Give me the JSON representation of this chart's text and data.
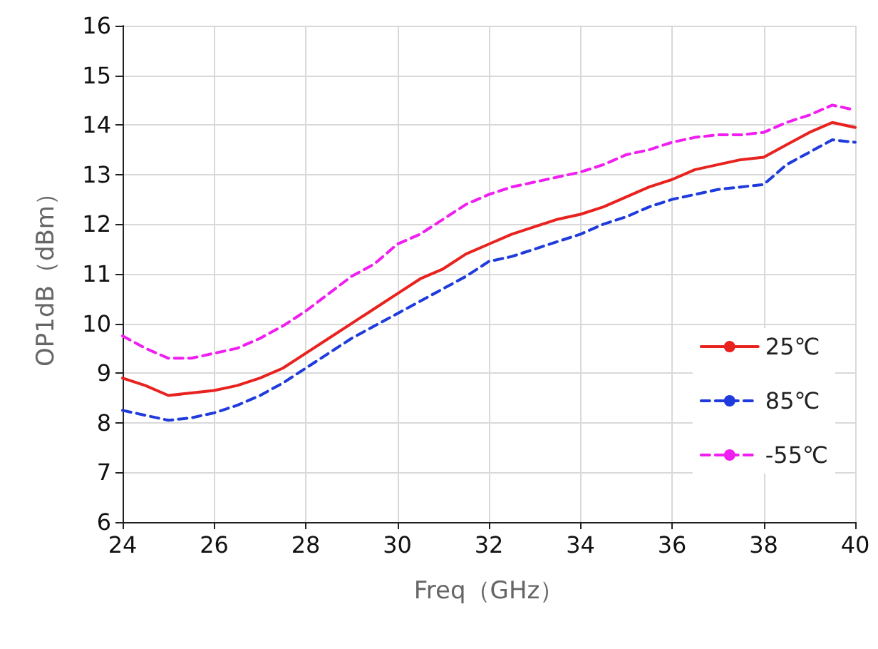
{
  "chart_data": {
    "type": "line",
    "xlabel": "Freq（GHz）",
    "ylabel": "OP1dB（dBm）",
    "x": [
      24,
      24.5,
      25,
      25.5,
      26,
      26.5,
      27,
      27.5,
      28,
      28.5,
      29,
      29.5,
      30,
      30.5,
      31,
      31.5,
      32,
      32.5,
      33,
      33.5,
      34,
      34.5,
      35,
      35.5,
      36,
      36.5,
      37,
      37.5,
      38,
      38.5,
      39,
      39.5,
      40
    ],
    "series": [
      {
        "name": "25℃",
        "color": "#e8231f",
        "line_style": "solid",
        "values": [
          8.9,
          8.75,
          8.55,
          8.6,
          8.65,
          8.75,
          8.9,
          9.1,
          9.4,
          9.7,
          10.0,
          10.3,
          10.6,
          10.9,
          11.1,
          11.4,
          11.6,
          11.8,
          11.95,
          12.1,
          12.2,
          12.35,
          12.55,
          12.75,
          12.9,
          13.1,
          13.2,
          13.3,
          13.35,
          13.6,
          13.85,
          14.05,
          13.95
        ]
      },
      {
        "name": "85℃",
        "color": "#1f3bdc",
        "line_style": "dashed",
        "values": [
          8.25,
          8.15,
          8.05,
          8.1,
          8.2,
          8.35,
          8.55,
          8.8,
          9.1,
          9.4,
          9.7,
          9.95,
          10.2,
          10.45,
          10.7,
          10.95,
          11.25,
          11.35,
          11.5,
          11.65,
          11.8,
          12.0,
          12.15,
          12.35,
          12.5,
          12.6,
          12.7,
          12.75,
          12.8,
          13.2,
          13.45,
          13.7,
          13.65
        ]
      },
      {
        "name": "-55℃",
        "color": "#f01ef0",
        "line_style": "dashed",
        "values": [
          9.75,
          9.5,
          9.3,
          9.3,
          9.4,
          9.5,
          9.7,
          9.95,
          10.25,
          10.6,
          10.95,
          11.2,
          11.6,
          11.8,
          12.1,
          12.4,
          12.6,
          12.75,
          12.85,
          12.95,
          13.05,
          13.2,
          13.4,
          13.5,
          13.65,
          13.75,
          13.8,
          13.8,
          13.85,
          14.05,
          14.2,
          14.4,
          14.3
        ]
      }
    ],
    "xlim": [
      24,
      40
    ],
    "xticks": [
      24,
      26,
      28,
      30,
      32,
      34,
      36,
      38,
      40
    ],
    "ylim": [
      6,
      16
    ],
    "yticks": [
      6,
      7,
      8,
      9,
      10,
      11,
      12,
      13,
      14,
      15,
      16
    ],
    "grid": true,
    "legend": "right",
    "marker": "none"
  }
}
